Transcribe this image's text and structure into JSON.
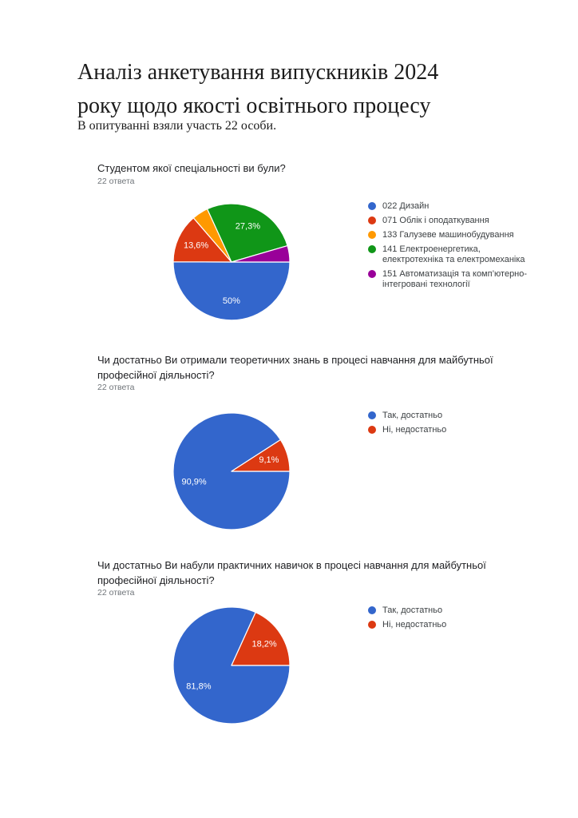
{
  "doc": {
    "title": "Аналіз анкетування випускників 2024\nроку щодо якості освітнього процесу",
    "subtitle": "В опитуванні взяли участь 22 особи."
  },
  "chart_data": [
    {
      "type": "pie",
      "question": "Студентом якої спеціальності ви були?",
      "responses_label": "22 ответа",
      "start_angle_deg": 90,
      "legend_position": "right",
      "slices": [
        {
          "label": "022 Дизайн",
          "value": 50,
          "percent_label": "50%",
          "color": "#3366cc"
        },
        {
          "label": "071 Облік і оподаткування",
          "value": 13.6,
          "percent_label": "13,6%",
          "color": "#dc3912"
        },
        {
          "label": "133 Галузеве машинобудування",
          "value": 4.5,
          "percent_label": "",
          "color": "#ff9900"
        },
        {
          "label": "141 Електроенергетика,\nелектротехніка та електромеханіка",
          "value": 27.3,
          "percent_label": "27,3%",
          "color": "#109618"
        },
        {
          "label": "151 Автоматизація та комп’ютерно-\nінтегровані технології",
          "value": 4.5,
          "percent_label": "",
          "color": "#990099"
        }
      ]
    },
    {
      "type": "pie",
      "question": "Чи достатньо Ви отримали теоретичних знань в процесі навчання для майбутньої\nпрофесійної діяльності?",
      "responses_label": "22 ответа",
      "start_angle_deg": 90,
      "legend_position": "right",
      "slices": [
        {
          "label": "Так, достатньо",
          "value": 90.9,
          "percent_label": "90,9%",
          "color": "#3366cc"
        },
        {
          "label": "Ні, недостатньо",
          "value": 9.1,
          "percent_label": "9,1%",
          "color": "#dc3912"
        }
      ]
    },
    {
      "type": "pie",
      "question": "Чи достатньо Ви набули практичних навичок в процесі навчання для майбутньої\nпрофесійної діяльності?",
      "responses_label": "22 ответа",
      "start_angle_deg": 90,
      "legend_position": "right",
      "slices": [
        {
          "label": "Так, достатньо",
          "value": 81.8,
          "percent_label": "81,8%",
          "color": "#3366cc"
        },
        {
          "label": "Ні, недостатньо",
          "value": 18.2,
          "percent_label": "18,2%",
          "color": "#dc3912"
        }
      ]
    }
  ]
}
